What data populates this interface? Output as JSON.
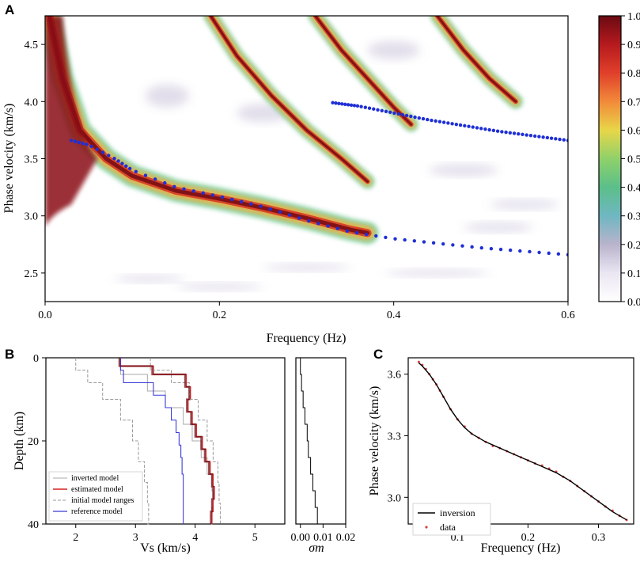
{
  "panels": {
    "a": "A",
    "b": "B",
    "c": "C"
  },
  "colors": {
    "dispersion_dots": "#1f2fd6",
    "estimated_model": "#d62020",
    "reference_model": "#3a3ad8",
    "inverted_model": "#aaaaaa",
    "initial_ranges": "#999999",
    "inversion_line": "#000000",
    "data_points": "#e04040"
  },
  "chart_data": [
    {
      "id": "A",
      "type": "heatmap",
      "xlabel": "Frequency (Hz)",
      "ylabel": "Phase velocity (km/s)",
      "xlim": [
        0.0,
        0.6
      ],
      "ylim": [
        2.25,
        4.75
      ],
      "xticks": [
        "0.0",
        "0.2",
        "0.4",
        "0.6"
      ],
      "yticks": [
        "2.5",
        "3.0",
        "3.5",
        "4.0",
        "4.5"
      ],
      "colorbar": {
        "range": [
          0.0,
          1.0
        ],
        "ticks": [
          "0.0",
          "0.1",
          "0.2",
          "0.3",
          "0.4",
          "0.5",
          "0.6",
          "0.7",
          "0.8",
          "0.9",
          "1.0"
        ],
        "colormap": "Spectral_r"
      },
      "ridges": [
        {
          "mode": "fundamental",
          "x": [
            0.005,
            0.02,
            0.04,
            0.07,
            0.1,
            0.15,
            0.2,
            0.25,
            0.3,
            0.35,
            0.37
          ],
          "y": [
            4.75,
            4.2,
            3.75,
            3.5,
            3.35,
            3.22,
            3.15,
            3.07,
            2.98,
            2.88,
            2.85
          ]
        },
        {
          "mode": "higher-1",
          "x": [
            0.19,
            0.22,
            0.26,
            0.3,
            0.34,
            0.37
          ],
          "y": [
            4.75,
            4.4,
            4.05,
            3.75,
            3.5,
            3.3
          ]
        },
        {
          "mode": "higher-2",
          "x": [
            0.31,
            0.34,
            0.37,
            0.4,
            0.42
          ],
          "y": [
            4.75,
            4.45,
            4.2,
            3.95,
            3.8
          ]
        },
        {
          "mode": "higher-3",
          "x": [
            0.45,
            0.48,
            0.51,
            0.54
          ],
          "y": [
            4.75,
            4.45,
            4.2,
            4.0
          ]
        }
      ],
      "picked_curves": [
        {
          "x": [
            0.03,
            0.05,
            0.08,
            0.1,
            0.15,
            0.2,
            0.25,
            0.3,
            0.35,
            0.4,
            0.45,
            0.5,
            0.55,
            0.6
          ],
          "y": [
            3.66,
            3.62,
            3.5,
            3.4,
            3.25,
            3.17,
            3.08,
            2.96,
            2.86,
            2.8,
            2.76,
            2.72,
            2.69,
            2.66
          ]
        },
        {
          "x": [
            0.33,
            0.36,
            0.4,
            0.44,
            0.48,
            0.52,
            0.56,
            0.6
          ],
          "y": [
            3.99,
            3.96,
            3.9,
            3.84,
            3.79,
            3.74,
            3.7,
            3.66
          ]
        }
      ]
    },
    {
      "id": "B",
      "type": "line",
      "xlabel": "Vs (km/s)",
      "ylabel": "Depth (km)",
      "xlim": [
        1.5,
        5.5
      ],
      "ylim": [
        40,
        0
      ],
      "xticks": [
        "2",
        "3",
        "4",
        "5"
      ],
      "yticks": [
        "0",
        "20",
        "40"
      ],
      "legend": [
        "inverted model",
        "estimated model",
        "initial model ranges",
        "reference model"
      ],
      "legend_position": "bottom-left",
      "series": [
        {
          "name": "inverted model",
          "depth": [
            0,
            4,
            8,
            12,
            16,
            20,
            24,
            28,
            32,
            36,
            40
          ],
          "vs": [
            2.75,
            3.2,
            3.5,
            3.8,
            3.95,
            4.1,
            4.2,
            4.28,
            4.3,
            4.28,
            4.27
          ]
        },
        {
          "name": "estimated model",
          "depth": [
            0,
            2,
            4,
            7,
            10,
            13,
            16,
            19,
            22,
            25,
            28,
            31,
            34,
            37,
            40
          ],
          "vs": [
            2.75,
            3.3,
            3.85,
            3.92,
            3.88,
            3.95,
            4.02,
            4.12,
            4.18,
            4.25,
            4.3,
            4.32,
            4.3,
            4.28,
            4.28
          ]
        },
        {
          "name": "initial model ranges",
          "depth": [
            0,
            3,
            6,
            10,
            15,
            20,
            25,
            30,
            35,
            40
          ],
          "vs": [
            2.0,
            2.2,
            2.45,
            2.75,
            2.95,
            3.05,
            3.15,
            3.2,
            3.22,
            3.2
          ]
        },
        {
          "name": "initial model ranges",
          "depth": [
            0,
            3,
            6,
            10,
            15,
            20,
            25,
            30,
            35,
            40
          ],
          "vs": [
            3.25,
            3.6,
            3.9,
            4.05,
            4.2,
            4.3,
            4.38,
            4.4,
            4.42,
            4.4
          ]
        },
        {
          "name": "reference model",
          "depth": [
            0,
            3,
            6,
            9,
            12,
            15,
            18,
            21,
            24,
            28,
            32,
            36,
            40
          ],
          "vs": [
            2.75,
            2.8,
            3.3,
            3.5,
            3.6,
            3.68,
            3.73,
            3.76,
            3.78,
            3.8,
            3.8,
            3.8,
            3.8
          ]
        }
      ]
    },
    {
      "id": "B-sigma",
      "type": "line",
      "xlabel": "σm",
      "xlim": [
        -0.002,
        0.02
      ],
      "ylim": [
        40,
        0
      ],
      "xticks": [
        "0.00",
        "0.01",
        "0.02"
      ],
      "series": [
        {
          "name": "sigma",
          "depth": [
            0,
            4,
            8,
            12,
            16,
            20,
            24,
            28,
            32,
            36,
            40
          ],
          "value": [
            0.0,
            0.0005,
            0.0012,
            0.002,
            0.003,
            0.0035,
            0.0045,
            0.0055,
            0.0065,
            0.0075,
            0.0085
          ]
        }
      ]
    },
    {
      "id": "C",
      "type": "line",
      "xlabel": "Frequency (Hz)",
      "ylabel": "Phase velocity (km/s)",
      "xlim": [
        0.03,
        0.35
      ],
      "ylim": [
        2.87,
        3.68
      ],
      "xticks": [
        "0.1",
        "0.2",
        "0.3"
      ],
      "yticks": [
        "3.0",
        "3.3",
        "3.6"
      ],
      "legend": [
        "inversion",
        "data"
      ],
      "legend_position": "bottom-left",
      "series": [
        {
          "name": "inversion",
          "x": [
            0.045,
            0.05,
            0.06,
            0.07,
            0.08,
            0.09,
            0.1,
            0.11,
            0.12,
            0.14,
            0.16,
            0.18,
            0.2,
            0.22,
            0.24,
            0.26,
            0.28,
            0.3,
            0.32,
            0.34
          ],
          "y": [
            3.655,
            3.64,
            3.6,
            3.55,
            3.49,
            3.43,
            3.38,
            3.34,
            3.31,
            3.27,
            3.24,
            3.21,
            3.18,
            3.15,
            3.12,
            3.08,
            3.03,
            2.98,
            2.93,
            2.89
          ]
        },
        {
          "name": "data",
          "x": [
            0.045,
            0.05,
            0.055,
            0.06,
            0.065,
            0.07,
            0.075,
            0.08,
            0.09,
            0.1,
            0.11,
            0.12,
            0.13,
            0.14,
            0.15,
            0.16,
            0.17,
            0.18,
            0.19,
            0.2,
            0.21,
            0.22,
            0.23,
            0.24,
            0.25,
            0.26,
            0.27,
            0.28,
            0.29,
            0.3,
            0.31,
            0.32,
            0.33,
            0.34
          ],
          "y": [
            3.66,
            3.645,
            3.625,
            3.6,
            3.575,
            3.55,
            3.52,
            3.49,
            3.43,
            3.38,
            3.345,
            3.31,
            3.29,
            3.27,
            3.25,
            3.24,
            3.225,
            3.21,
            3.195,
            3.18,
            3.165,
            3.155,
            3.14,
            3.125,
            3.1,
            3.08,
            3.055,
            3.03,
            3.005,
            2.98,
            2.955,
            2.935,
            2.91,
            2.89
          ]
        }
      ]
    }
  ]
}
